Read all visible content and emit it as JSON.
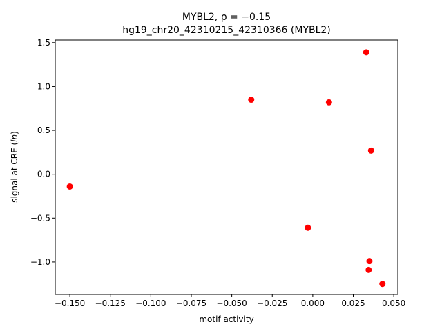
{
  "chart_data": {
    "type": "scatter",
    "title_line1_prefix": "MYBL2, ",
    "title_line1_rho": "ρ = −0.15",
    "title_line2": "hg19_chr20_42310215_42310366 (MYBL2)",
    "xlabel": "motif activity",
    "ylabel_prefix": "signal at CRE (",
    "ylabel_italic": "ln",
    "ylabel_suffix": ")",
    "xlim": [
      -0.159,
      0.0525
    ],
    "ylim": [
      -1.37,
      1.53
    ],
    "xticks": [
      -0.15,
      -0.125,
      -0.1,
      -0.075,
      -0.05,
      -0.025,
      0.0,
      0.025,
      0.05
    ],
    "xtick_labels": [
      "−0.150",
      "−0.125",
      "−0.100",
      "−0.075",
      "−0.050",
      "−0.025",
      "0.000",
      "0.025",
      "0.050"
    ],
    "yticks": [
      -1.0,
      -0.5,
      0.0,
      0.5,
      1.0,
      1.5
    ],
    "ytick_labels": [
      "−1.0",
      "−0.5",
      "0.0",
      "0.5",
      "1.0",
      "1.5"
    ],
    "marker_color": "#ff0000",
    "grid": false,
    "points": [
      {
        "x": -0.15,
        "y": -0.14
      },
      {
        "x": -0.038,
        "y": 0.85
      },
      {
        "x": -0.003,
        "y": -0.61
      },
      {
        "x": 0.01,
        "y": 0.82
      },
      {
        "x": 0.033,
        "y": 1.39
      },
      {
        "x": 0.036,
        "y": 0.27
      },
      {
        "x": 0.035,
        "y": -0.99
      },
      {
        "x": 0.0345,
        "y": -1.09
      },
      {
        "x": 0.043,
        "y": -1.25
      }
    ]
  }
}
